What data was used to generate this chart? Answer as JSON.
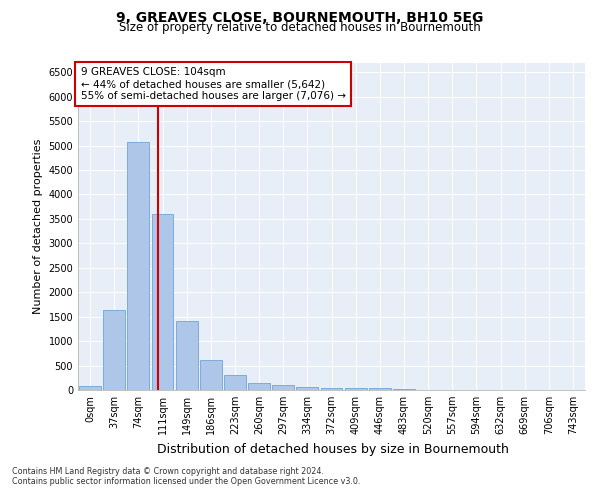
{
  "title": "9, GREAVES CLOSE, BOURNEMOUTH, BH10 5EG",
  "subtitle": "Size of property relative to detached houses in Bournemouth",
  "xlabel": "Distribution of detached houses by size in Bournemouth",
  "ylabel": "Number of detached properties",
  "footnote1": "Contains HM Land Registry data © Crown copyright and database right 2024.",
  "footnote2": "Contains public sector information licensed under the Open Government Licence v3.0.",
  "bar_labels": [
    "0sqm",
    "37sqm",
    "74sqm",
    "111sqm",
    "149sqm",
    "186sqm",
    "223sqm",
    "260sqm",
    "297sqm",
    "334sqm",
    "372sqm",
    "409sqm",
    "446sqm",
    "483sqm",
    "520sqm",
    "557sqm",
    "594sqm",
    "632sqm",
    "669sqm",
    "706sqm",
    "743sqm"
  ],
  "bar_values": [
    75,
    1640,
    5070,
    3600,
    1410,
    620,
    310,
    145,
    100,
    55,
    50,
    45,
    35,
    20,
    10,
    8,
    5,
    3,
    2,
    1,
    1
  ],
  "bar_color": "#aec6e8",
  "bar_edge_color": "#5b9bd5",
  "vline_x": 2.82,
  "vline_color": "#cc0000",
  "annotation_text": "9 GREAVES CLOSE: 104sqm\n← 44% of detached houses are smaller (5,642)\n55% of semi-detached houses are larger (7,076) →",
  "annotation_box_color": "#ffffff",
  "annotation_box_edge": "#cc0000",
  "ylim": [
    0,
    6700
  ],
  "yticks": [
    0,
    500,
    1000,
    1500,
    2000,
    2500,
    3000,
    3500,
    4000,
    4500,
    5000,
    5500,
    6000,
    6500
  ],
  "background_color": "#e8eef7",
  "title_fontsize": 10,
  "subtitle_fontsize": 8.5,
  "ylabel_fontsize": 8,
  "xlabel_fontsize": 9,
  "tick_fontsize": 7,
  "annot_fontsize": 7.5
}
